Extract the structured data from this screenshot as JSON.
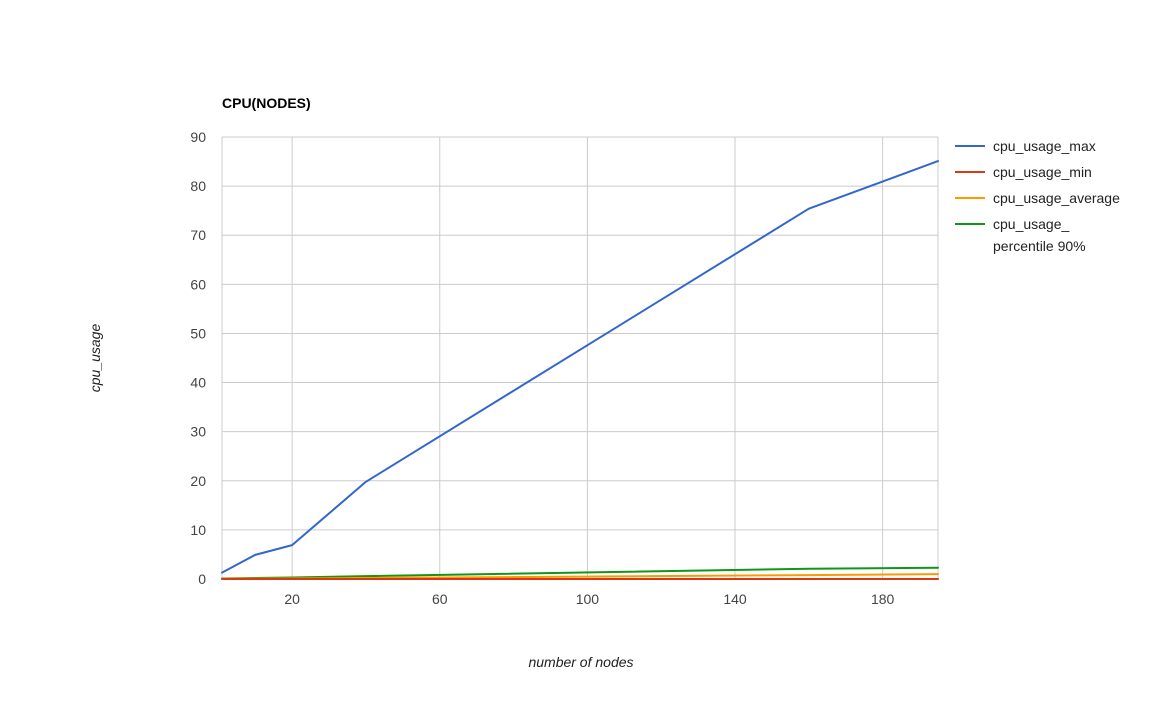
{
  "chart_data": {
    "type": "line",
    "title": "CPU(NODES)",
    "xlabel": "number of nodes",
    "ylabel": "cpu_usage",
    "xlim": [
      1,
      195
    ],
    "ylim": [
      0,
      90
    ],
    "x_ticks": [
      20,
      60,
      100,
      140,
      180
    ],
    "y_ticks": [
      0,
      10,
      20,
      30,
      40,
      50,
      60,
      70,
      80,
      90
    ],
    "grid": true,
    "legend_position": "right",
    "series": [
      {
        "name": "cpu_usage_max",
        "legend_lines": [
          "cpu_usage_max"
        ],
        "color": "#3366cc",
        "x": [
          1,
          10,
          20,
          40,
          160,
          195
        ],
        "y": [
          1.3,
          4.9,
          6.9,
          19.8,
          75.4,
          85.1
        ]
      },
      {
        "name": "cpu_usage_min",
        "legend_lines": [
          "cpu_usage_min"
        ],
        "color": "#dc3912",
        "x": [
          1,
          10,
          20,
          40,
          160,
          195
        ],
        "y": [
          0.0,
          0.0,
          0.0,
          0.0,
          0.0,
          0.0
        ]
      },
      {
        "name": "cpu_usage_average",
        "legend_lines": [
          "cpu_usage_average"
        ],
        "color": "#ff9900",
        "x": [
          1,
          10,
          20,
          40,
          160,
          195
        ],
        "y": [
          0.05,
          0.08,
          0.1,
          0.2,
          0.8,
          1.0
        ]
      },
      {
        "name": "cpu_usage_ percentile 90%",
        "legend_lines": [
          "cpu_usage_",
          "percentile 90%"
        ],
        "color": "#109618",
        "x": [
          1,
          10,
          20,
          40,
          160,
          195
        ],
        "y": [
          0.1,
          0.2,
          0.3,
          0.6,
          2.1,
          2.3
        ]
      }
    ]
  }
}
